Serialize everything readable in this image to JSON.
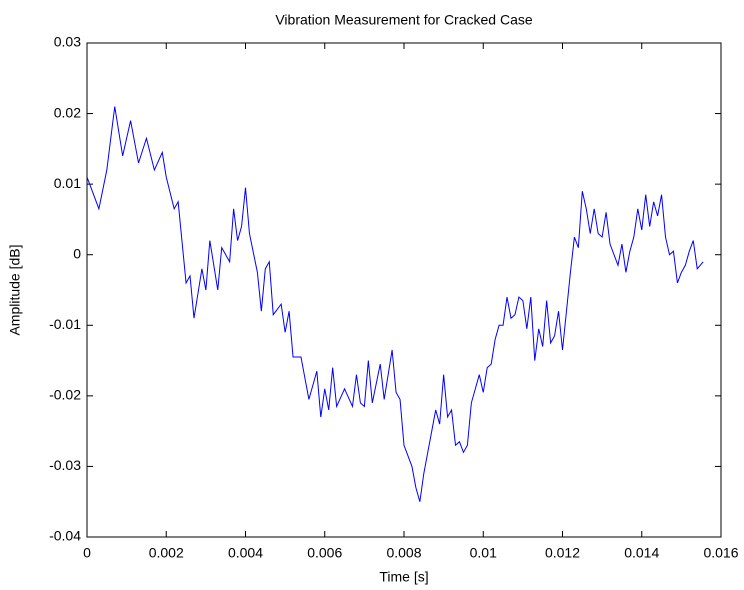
{
  "chart_data": {
    "type": "line",
    "title": "Vibration Measurement for Cracked Case",
    "xlabel": "Time [s]",
    "ylabel": "Amplitude [dB]",
    "x": [
      0,
      0.0003,
      0.0005,
      0.0007,
      0.0009,
      0.0011,
      0.0013,
      0.0015,
      0.0017,
      0.0019,
      0.002,
      0.0022,
      0.0023,
      0.0025,
      0.0026,
      0.0027,
      0.0029,
      0.003,
      0.0031,
      0.0033,
      0.0034,
      0.0036,
      0.0037,
      0.0038,
      0.0039,
      0.004,
      0.0041,
      0.0043,
      0.0044,
      0.0045,
      0.0046,
      0.0047,
      0.0049,
      0.005,
      0.0051,
      0.0052,
      0.0054,
      0.0055,
      0.0056,
      0.0058,
      0.0059,
      0.006,
      0.0061,
      0.0062,
      0.0063,
      0.0065,
      0.0067,
      0.0068,
      0.0069,
      0.007,
      0.0071,
      0.0072,
      0.0074,
      0.0075,
      0.0077,
      0.0078,
      0.0079,
      0.008,
      0.0082,
      0.0083,
      0.0084,
      0.0085,
      0.0086,
      0.0087,
      0.0088,
      0.0089,
      0.009,
      0.0091,
      0.0092,
      0.0093,
      0.0094,
      0.0095,
      0.0096,
      0.0097,
      0.0099,
      0.01,
      0.0101,
      0.0102,
      0.0103,
      0.0104,
      0.0105,
      0.0106,
      0.0107,
      0.0108,
      0.0109,
      0.011,
      0.0111,
      0.0112,
      0.0113,
      0.0114,
      0.0115,
      0.0116,
      0.0117,
      0.0118,
      0.0119,
      0.012,
      0.0121,
      0.0122,
      0.0123,
      0.0124,
      0.0125,
      0.0126,
      0.0127,
      0.0128,
      0.0129,
      0.013,
      0.0131,
      0.0132,
      0.0133,
      0.0134,
      0.0135,
      0.0136,
      0.0137,
      0.0138,
      0.0139,
      0.014,
      0.0141,
      0.0142,
      0.0143,
      0.0144,
      0.0145,
      0.0146,
      0.0147,
      0.0148,
      0.0149,
      0.015,
      0.0151,
      0.0152,
      0.0153,
      0.0154,
      0.01555
    ],
    "series": [
      {
        "color": "#0000ff",
        "values": [
          0.011,
          0.0065,
          0.012,
          0.021,
          0.014,
          0.019,
          0.013,
          0.0165,
          0.012,
          0.0145,
          0.011,
          0.0065,
          0.0075,
          -0.004,
          -0.003,
          -0.009,
          -0.002,
          -0.005,
          0.002,
          -0.005,
          0.001,
          -0.001,
          0.0065,
          0.002,
          0.004,
          0.0095,
          0.003,
          -0.0025,
          -0.008,
          -0.002,
          -0.001,
          -0.0085,
          -0.007,
          -0.011,
          -0.008,
          -0.0145,
          -0.0145,
          -0.0175,
          -0.0205,
          -0.0165,
          -0.023,
          -0.019,
          -0.022,
          -0.016,
          -0.0215,
          -0.019,
          -0.0215,
          -0.017,
          -0.021,
          -0.0215,
          -0.015,
          -0.021,
          -0.0155,
          -0.0205,
          -0.0135,
          -0.0195,
          -0.0205,
          -0.027,
          -0.03,
          -0.033,
          -0.035,
          -0.031,
          -0.028,
          -0.025,
          -0.022,
          -0.024,
          -0.017,
          -0.023,
          -0.022,
          -0.027,
          -0.0265,
          -0.028,
          -0.027,
          -0.021,
          -0.017,
          -0.0195,
          -0.016,
          -0.0155,
          -0.012,
          -0.01,
          -0.01,
          -0.006,
          -0.009,
          -0.0085,
          -0.006,
          -0.0065,
          -0.0105,
          -0.006,
          -0.015,
          -0.0105,
          -0.013,
          -0.0065,
          -0.0125,
          -0.0115,
          -0.008,
          -0.0135,
          -0.008,
          -0.0025,
          0.0025,
          0.001,
          0.009,
          0.0065,
          0.003,
          0.0065,
          0.003,
          0.0025,
          0.006,
          0.0015,
          0,
          -0.0015,
          0.0015,
          -0.0025,
          0.0005,
          0.0025,
          0.0065,
          0.0035,
          0.0085,
          0.004,
          0.0075,
          0.0055,
          0.0085,
          0.0025,
          0,
          0.0005,
          -0.004,
          -0.0025,
          -0.0015,
          0.0005,
          0.002,
          -0.002,
          -0.001
        ]
      }
    ],
    "xlim": [
      0,
      0.016
    ],
    "xticks": [
      0,
      0.002,
      0.004,
      0.006,
      0.008,
      0.01,
      0.012,
      0.014,
      0.016
    ],
    "ylim": [
      -0.04,
      0.03
    ],
    "yticks": [
      -0.04,
      -0.03,
      -0.02,
      -0.01,
      0,
      0.01,
      0.02,
      0.03
    ],
    "grid": false
  }
}
